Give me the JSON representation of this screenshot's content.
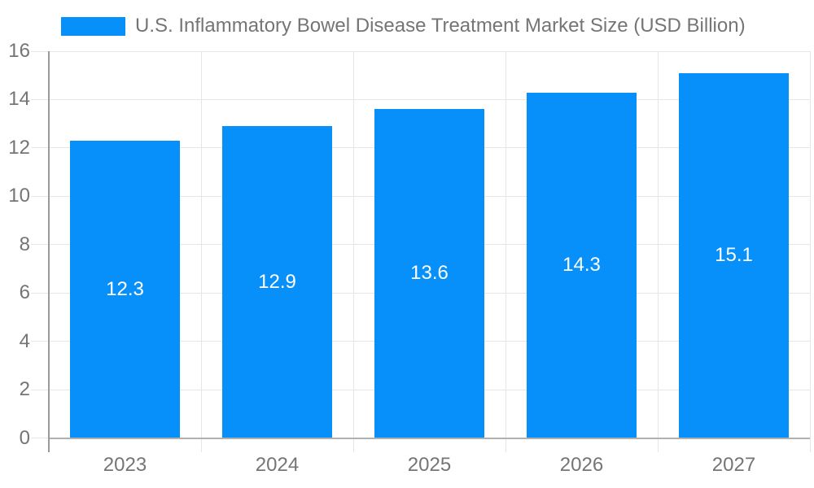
{
  "legend": {
    "label": "U.S. Inflammatory Bowel Disease Treatment Market Size (USD Billion)"
  },
  "chart_data": {
    "type": "bar",
    "title": "U.S. Inflammatory Bowel Disease Treatment Market Size (USD Billion)",
    "categories": [
      "2023",
      "2024",
      "2025",
      "2026",
      "2027"
    ],
    "values": [
      12.3,
      12.9,
      13.6,
      14.3,
      15.1
    ],
    "value_labels": [
      "12.3",
      "12.9",
      "13.6",
      "14.3",
      "15.1"
    ],
    "xlabel": "",
    "ylabel": "",
    "ylim": [
      0,
      16
    ],
    "ytick_step": 2,
    "ytick_labels": [
      "0",
      "2",
      "4",
      "6",
      "8",
      "10",
      "12",
      "14",
      "16"
    ],
    "grid": true,
    "legend_position": "top",
    "colors": {
      "bar": "#0890fa",
      "bar_label_text": "#ffffff",
      "axis_text": "#757575",
      "gridline": "#e6e6e6",
      "axis_line": "#9a9a9a",
      "baseline": "#b0b0b0"
    }
  }
}
